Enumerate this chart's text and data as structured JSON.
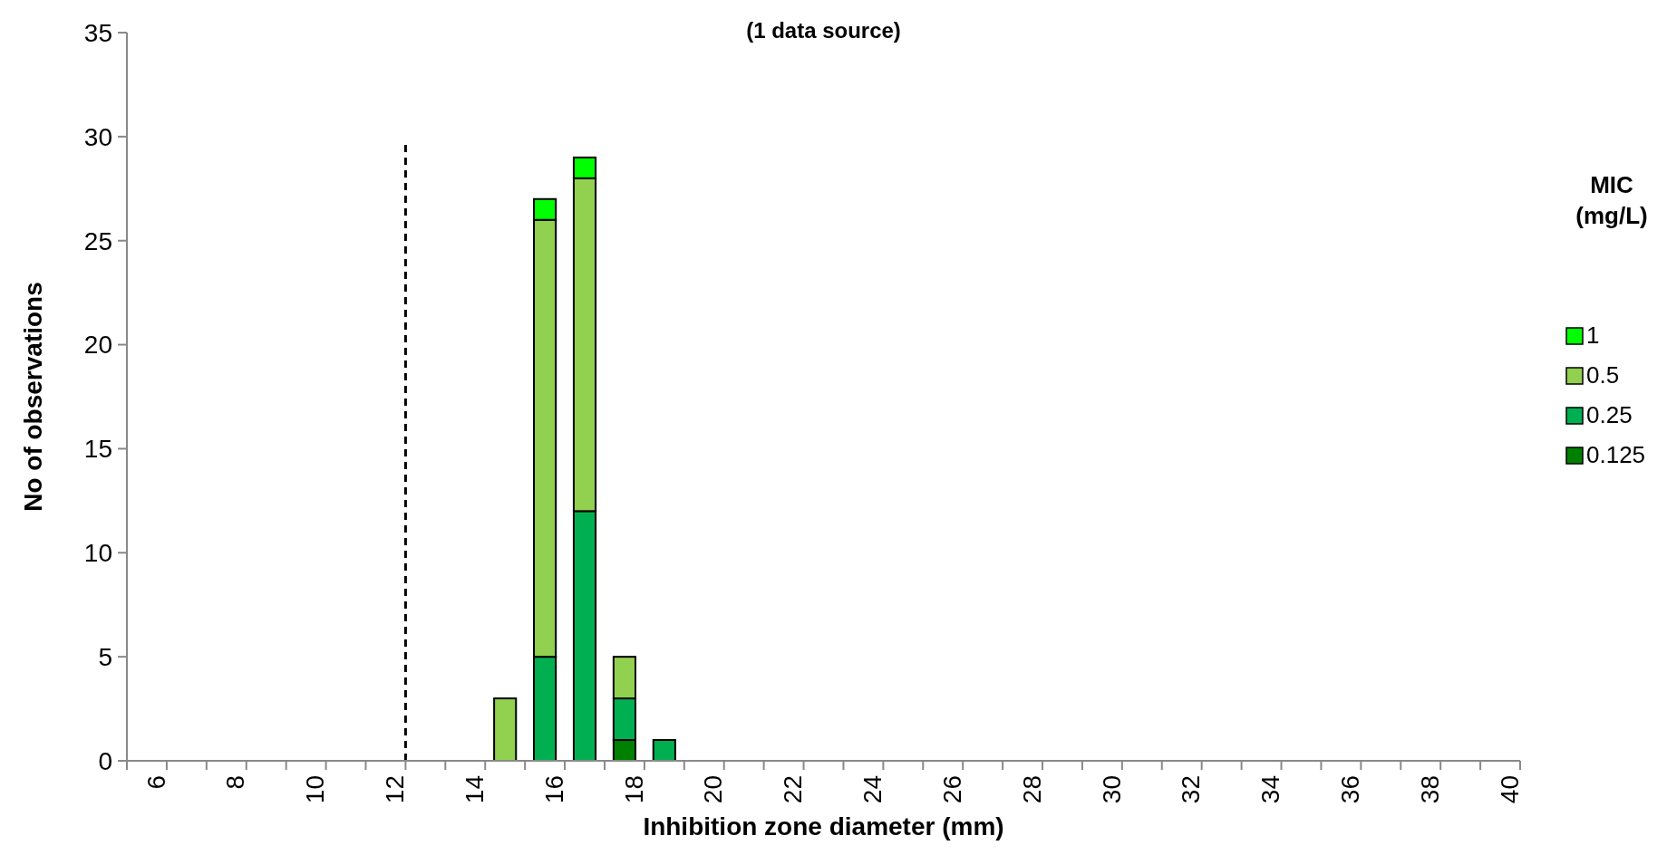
{
  "chart_data": {
    "type": "bar",
    "title": "(1 data source)",
    "xlabel": "Inhibition zone diameter (mm)",
    "ylabel": "No of observations",
    "legend_title": "MIC (mg/L)",
    "stacked": true,
    "x": [
      15,
      16,
      17,
      18,
      19
    ],
    "series": [
      {
        "name": "0.125",
        "color": "#008000",
        "values": [
          0,
          0,
          0,
          1,
          0
        ]
      },
      {
        "name": "0.25",
        "color": "#00b050",
        "values": [
          0,
          5,
          12,
          2,
          1
        ]
      },
      {
        "name": "0.5",
        "color": "#92d050",
        "values": [
          3,
          21,
          16,
          2,
          0
        ]
      },
      {
        "name": "1",
        "color": "#00ff00",
        "values": [
          0,
          1,
          1,
          0,
          0
        ]
      }
    ],
    "xlim": [
      5.5,
      40.5
    ],
    "xticks": [
      {
        "value": 5.5,
        "label": null
      },
      {
        "value": 6,
        "label": "6"
      },
      {
        "value": 6.5,
        "label": null
      },
      {
        "value": 7.5,
        "label": null
      },
      {
        "value": 8,
        "label": "8"
      },
      {
        "value": 8.5,
        "label": null
      },
      {
        "value": 9.5,
        "label": null
      },
      {
        "value": 10,
        "label": "10"
      },
      {
        "value": 10.5,
        "label": null
      },
      {
        "value": 11.5,
        "label": null
      },
      {
        "value": 12,
        "label": "12"
      },
      {
        "value": 12.5,
        "label": null
      },
      {
        "value": 13.5,
        "label": null
      },
      {
        "value": 14,
        "label": "14"
      },
      {
        "value": 14.5,
        "label": null
      },
      {
        "value": 15.5,
        "label": null
      },
      {
        "value": 16,
        "label": "16"
      },
      {
        "value": 16.5,
        "label": null
      },
      {
        "value": 17.5,
        "label": null
      },
      {
        "value": 18,
        "label": "18"
      },
      {
        "value": 18.5,
        "label": null
      },
      {
        "value": 19.5,
        "label": null
      },
      {
        "value": 20,
        "label": "20"
      },
      {
        "value": 20.5,
        "label": null
      },
      {
        "value": 21.5,
        "label": null
      },
      {
        "value": 22,
        "label": "22"
      },
      {
        "value": 22.5,
        "label": null
      },
      {
        "value": 23.5,
        "label": null
      },
      {
        "value": 24,
        "label": "24"
      },
      {
        "value": 24.5,
        "label": null
      },
      {
        "value": 25.5,
        "label": null
      },
      {
        "value": 26,
        "label": "26"
      },
      {
        "value": 26.5,
        "label": null
      },
      {
        "value": 27.5,
        "label": null
      },
      {
        "value": 28,
        "label": "28"
      },
      {
        "value": 28.5,
        "label": null
      },
      {
        "value": 29.5,
        "label": null
      },
      {
        "value": 30,
        "label": "30"
      },
      {
        "value": 30.5,
        "label": null
      },
      {
        "value": 31.5,
        "label": null
      },
      {
        "value": 32,
        "label": "32"
      },
      {
        "value": 32.5,
        "label": null
      },
      {
        "value": 33.5,
        "label": null
      },
      {
        "value": 34,
        "label": "34"
      },
      {
        "value": 34.5,
        "label": null
      },
      {
        "value": 35.5,
        "label": null
      },
      {
        "value": 36,
        "label": "36"
      },
      {
        "value": 36.5,
        "label": null
      },
      {
        "value": 37.5,
        "label": null
      },
      {
        "value": 38,
        "label": "38"
      },
      {
        "value": 38.5,
        "label": null
      },
      {
        "value": 39.5,
        "label": null
      },
      {
        "value": 40,
        "label": "40"
      },
      {
        "value": 40.5,
        "label": null
      }
    ],
    "ylim": [
      0,
      35
    ],
    "yticks": [
      0,
      5,
      10,
      15,
      20,
      25,
      30,
      35
    ],
    "ref_lines": [
      {
        "axis": "x",
        "value": 12.5,
        "color": "#000000",
        "line_style": "dashed"
      }
    ],
    "legend": "right",
    "grid": false
  }
}
